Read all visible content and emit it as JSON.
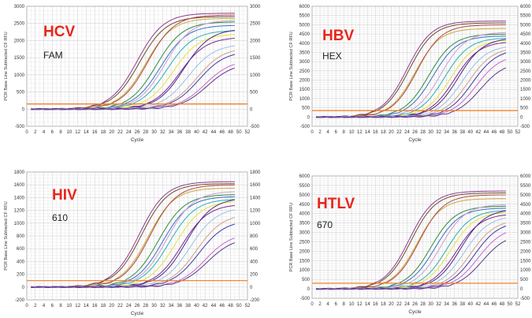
{
  "chart_data": [
    {
      "type": "line",
      "target": "HCV",
      "channel": "FAM",
      "xlabel": "Cycle",
      "ylabel": "PCR Base Line Subtracted CF RFU",
      "xlim": [
        0,
        52
      ],
      "ylim": [
        -500,
        3000
      ],
      "xticks": [
        0,
        2,
        4,
        6,
        8,
        10,
        12,
        14,
        16,
        18,
        20,
        22,
        24,
        26,
        28,
        30,
        32,
        34,
        36,
        38,
        40,
        42,
        44,
        46,
        48,
        50,
        52
      ],
      "yticks": [
        -500,
        0,
        500,
        1000,
        1500,
        2000,
        2500,
        3000
      ],
      "threshold": 150,
      "grid": true,
      "annotation_colors": {
        "target": "#e8261c",
        "channel": "#222222"
      },
      "series": [
        {
          "color": "#8e3c8e",
          "ct": 20.5,
          "plateau": 2800
        },
        {
          "color": "#6b4a2c",
          "ct": 21.0,
          "plateau": 2700
        },
        {
          "color": "#c9a83a",
          "ct": 22.5,
          "plateau": 2650
        },
        {
          "color": "#b04848",
          "ct": 23.0,
          "plateau": 2750
        },
        {
          "color": "#2e8a3e",
          "ct": 25.0,
          "plateau": 2550
        },
        {
          "color": "#3b6fc4",
          "ct": 26.0,
          "plateau": 2450
        },
        {
          "color": "#c8a0d8",
          "ct": 27.0,
          "plateau": 2600
        },
        {
          "color": "#2ab0b0",
          "ct": 27.5,
          "plateau": 2300
        },
        {
          "color": "#e8e040",
          "ct": 29.0,
          "plateau": 2200
        },
        {
          "color": "#7a2a8a",
          "ct": 30.5,
          "plateau": 2100
        },
        {
          "color": "#4a2a8a",
          "ct": 31.5,
          "plateau": 2350
        },
        {
          "color": "#9ac0e8",
          "ct": 32.5,
          "plateau": 1900
        },
        {
          "color": "#d0a080",
          "ct": 34.5,
          "plateau": 1800
        },
        {
          "color": "#3a3ab0",
          "ct": 35.0,
          "plateau": 1700
        },
        {
          "color": "#c86ac8",
          "ct": 36.5,
          "plateau": 1450
        },
        {
          "color": "#5a3a8a",
          "ct": 37.0,
          "plateau": 1350
        }
      ]
    },
    {
      "type": "line",
      "target": "HBV",
      "channel": "HEX",
      "xlabel": "Cycle",
      "ylabel": "PCR Base Line Subtracted CF RFU",
      "xlim": [
        0,
        52
      ],
      "ylim": [
        -500,
        6000
      ],
      "xticks": [
        0,
        2,
        4,
        6,
        8,
        10,
        12,
        14,
        16,
        18,
        20,
        22,
        24,
        26,
        28,
        30,
        32,
        34,
        36,
        38,
        40,
        42,
        44,
        46,
        48,
        50,
        52
      ],
      "yticks": [
        -500,
        0,
        500,
        1000,
        1500,
        2000,
        2500,
        3000,
        3500,
        4000,
        4500,
        5000,
        5500,
        6000
      ],
      "threshold": 350,
      "grid": true,
      "annotation_colors": {
        "target": "#e8261c",
        "channel": "#222222"
      },
      "series": [
        {
          "color": "#8e3c8e",
          "ct": 18.5,
          "plateau": 5200
        },
        {
          "color": "#6b4a2c",
          "ct": 19.0,
          "plateau": 5100
        },
        {
          "color": "#c9a83a",
          "ct": 20.5,
          "plateau": 4800
        },
        {
          "color": "#b04848",
          "ct": 21.0,
          "plateau": 5000
        },
        {
          "color": "#2e8a3e",
          "ct": 24.0,
          "plateau": 4500
        },
        {
          "color": "#3b6fc4",
          "ct": 25.0,
          "plateau": 4400
        },
        {
          "color": "#c8a0d8",
          "ct": 27.0,
          "plateau": 4600
        },
        {
          "color": "#2ab0b0",
          "ct": 28.0,
          "plateau": 4300
        },
        {
          "color": "#e8e040",
          "ct": 29.5,
          "plateau": 4200
        },
        {
          "color": "#7a2a8a",
          "ct": 30.5,
          "plateau": 4100
        },
        {
          "color": "#4a2a8a",
          "ct": 31.5,
          "plateau": 4300
        },
        {
          "color": "#9ac0e8",
          "ct": 32.5,
          "plateau": 3900
        },
        {
          "color": "#d0a080",
          "ct": 34.0,
          "plateau": 3800
        },
        {
          "color": "#3a3ab0",
          "ct": 35.0,
          "plateau": 3700
        },
        {
          "color": "#c86ac8",
          "ct": 36.0,
          "plateau": 3400
        },
        {
          "color": "#5a3a8a",
          "ct": 37.0,
          "plateau": 3000
        }
      ]
    },
    {
      "type": "line",
      "target": "HIV",
      "channel": "610",
      "xlabel": "Cycle",
      "ylabel": "PCR Base Line Subtracted CF RFU",
      "xlim": [
        0,
        52
      ],
      "ylim": [
        -200,
        1800
      ],
      "xticks": [
        0,
        2,
        4,
        6,
        8,
        10,
        12,
        14,
        16,
        18,
        20,
        22,
        24,
        26,
        28,
        30,
        32,
        34,
        36,
        38,
        40,
        42,
        44,
        46,
        48,
        50,
        52
      ],
      "yticks": [
        -200,
        0,
        200,
        400,
        600,
        800,
        1000,
        1200,
        1400,
        1600,
        1800
      ],
      "threshold": 100,
      "grid": true,
      "annotation_colors": {
        "target": "#e8261c",
        "channel": "#222222"
      },
      "series": [
        {
          "color": "#8e3c8e",
          "ct": 21.0,
          "plateau": 1650
        },
        {
          "color": "#6b4a2c",
          "ct": 21.5,
          "plateau": 1620
        },
        {
          "color": "#c9a83a",
          "ct": 23.0,
          "plateau": 1550
        },
        {
          "color": "#b04848",
          "ct": 23.5,
          "plateau": 1600
        },
        {
          "color": "#2e8a3e",
          "ct": 25.5,
          "plateau": 1450
        },
        {
          "color": "#3b6fc4",
          "ct": 26.5,
          "plateau": 1420
        },
        {
          "color": "#c8a0d8",
          "ct": 27.5,
          "plateau": 1500
        },
        {
          "color": "#2ab0b0",
          "ct": 28.0,
          "plateau": 1380
        },
        {
          "color": "#e8e040",
          "ct": 29.5,
          "plateau": 1350
        },
        {
          "color": "#7a2a8a",
          "ct": 31.0,
          "plateau": 1300
        },
        {
          "color": "#4a2a8a",
          "ct": 32.0,
          "plateau": 1400
        },
        {
          "color": "#9ac0e8",
          "ct": 33.0,
          "plateau": 1250
        },
        {
          "color": "#d0a080",
          "ct": 34.5,
          "plateau": 1150
        },
        {
          "color": "#3a3ab0",
          "ct": 35.0,
          "plateau": 1050
        },
        {
          "color": "#c86ac8",
          "ct": 36.5,
          "plateau": 850
        },
        {
          "color": "#5a3a8a",
          "ct": 37.0,
          "plateau": 780
        }
      ]
    },
    {
      "type": "line",
      "target": "HTLV",
      "channel": "670",
      "xlabel": "Cycle",
      "ylabel": "PCR Base Line Subtracted CF RFU",
      "xlim": [
        0,
        52
      ],
      "ylim": [
        -500,
        6000
      ],
      "xticks": [
        0,
        2,
        4,
        6,
        8,
        10,
        12,
        14,
        16,
        18,
        20,
        22,
        24,
        26,
        28,
        30,
        32,
        34,
        36,
        38,
        40,
        42,
        44,
        46,
        48,
        50,
        52
      ],
      "yticks": [
        -500,
        0,
        500,
        1000,
        1500,
        2000,
        2500,
        3000,
        3500,
        4000,
        4500,
        5000,
        5500,
        6000
      ],
      "threshold": 300,
      "grid": true,
      "annotation_colors": {
        "target": "#e8261c",
        "channel": "#222222"
      },
      "series": [
        {
          "color": "#8e3c8e",
          "ct": 19.0,
          "plateau": 5200
        },
        {
          "color": "#6b4a2c",
          "ct": 19.5,
          "plateau": 5100
        },
        {
          "color": "#c9a83a",
          "ct": 21.0,
          "plateau": 4800
        },
        {
          "color": "#b04848",
          "ct": 21.5,
          "plateau": 5000
        },
        {
          "color": "#2e8a3e",
          "ct": 24.5,
          "plateau": 4400
        },
        {
          "color": "#3b6fc4",
          "ct": 25.5,
          "plateau": 4300
        },
        {
          "color": "#c8a0d8",
          "ct": 27.0,
          "plateau": 4500
        },
        {
          "color": "#2ab0b0",
          "ct": 28.5,
          "plateau": 4200
        },
        {
          "color": "#e8e040",
          "ct": 29.5,
          "plateau": 4100
        },
        {
          "color": "#7a2a8a",
          "ct": 31.0,
          "plateau": 4000
        },
        {
          "color": "#4a2a8a",
          "ct": 32.0,
          "plateau": 4250
        },
        {
          "color": "#9ac0e8",
          "ct": 33.0,
          "plateau": 3900
        },
        {
          "color": "#d0a080",
          "ct": 34.5,
          "plateau": 3700
        },
        {
          "color": "#3a3ab0",
          "ct": 35.5,
          "plateau": 3600
        },
        {
          "color": "#c86ac8",
          "ct": 36.5,
          "plateau": 3300
        },
        {
          "color": "#5a3a8a",
          "ct": 37.5,
          "plateau": 2950
        }
      ]
    }
  ]
}
